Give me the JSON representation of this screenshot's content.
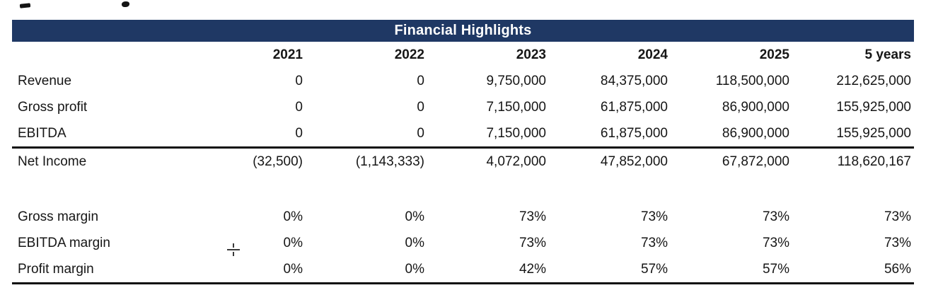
{
  "table": {
    "title": "Financial Highlights",
    "columns": [
      "2021",
      "2022",
      "2023",
      "2024",
      "2025",
      "5 years"
    ],
    "rows": [
      {
        "label": "Revenue",
        "v": [
          "0",
          "0",
          "9,750,000",
          "84,375,000",
          "118,500,000",
          "212,625,000"
        ]
      },
      {
        "label": "Gross profit",
        "v": [
          "0",
          "0",
          "7,150,000",
          "61,875,000",
          "86,900,000",
          "155,925,000"
        ]
      },
      {
        "label": "EBITDA",
        "v": [
          "0",
          "0",
          "7,150,000",
          "61,875,000",
          "86,900,000",
          "155,925,000"
        ]
      },
      {
        "label": "Net Income",
        "v": [
          "(32,500)",
          "(1,143,333)",
          "4,072,000",
          "47,852,000",
          "67,872,000",
          "118,620,167"
        ]
      },
      {
        "label": "Gross margin",
        "v": [
          "0%",
          "0%",
          "73%",
          "73%",
          "73%",
          "73%"
        ]
      },
      {
        "label": "EBITDA margin",
        "v": [
          "0%",
          "0%",
          "73%",
          "73%",
          "73%",
          "73%"
        ]
      },
      {
        "label": "Profit margin",
        "v": [
          "0%",
          "0%",
          "42%",
          "57%",
          "57%",
          "56%"
        ]
      }
    ]
  },
  "colors": {
    "header_bg": "#1f3864",
    "header_text": "#ffffff",
    "rule": "#0d0d0d"
  },
  "icons": {
    "crosshair_cursor": "dashed-plus-mark"
  }
}
